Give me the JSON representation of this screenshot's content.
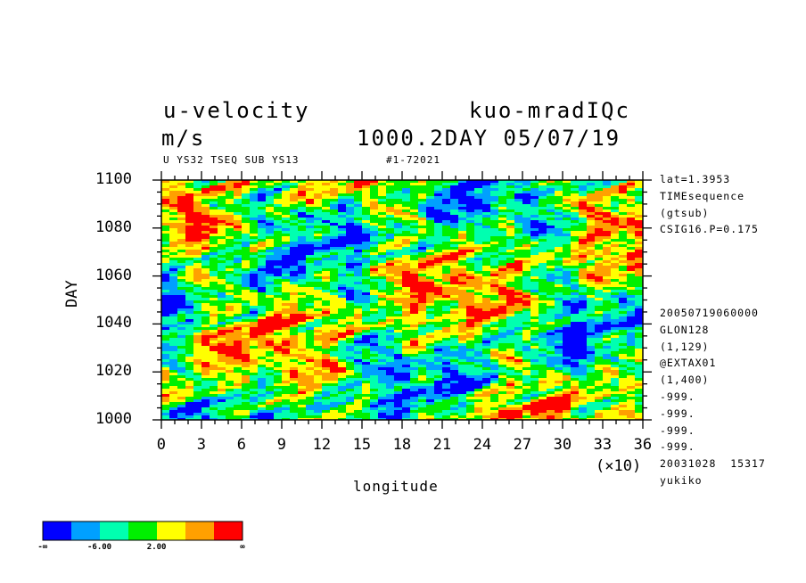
{
  "header": {
    "title_left": "u-velocity",
    "units": "m/s",
    "title_right": "kuo-mradIQc",
    "subtitle_right": "1000.2DAY 05/07/19",
    "info_line": "U YS32 TSEQ SUB YS13",
    "run_id": "#1-72021"
  },
  "side_info": {
    "top": [
      "lat=1.3953",
      "TIMEsequence",
      "(gtsub)",
      "CSIG16.P=0.175"
    ],
    "bottom": [
      "20050719060000",
      "GLON128",
      "(1,129)",
      "@EXTAX01",
      "(1,400)",
      "-999.",
      "-999.",
      "-999.",
      "-999.",
      "20031028  15317",
      "yukiko"
    ]
  },
  "chart_data": {
    "type": "heatmap",
    "xlabel": "longitude",
    "x_scale_label": "(×10)",
    "ylabel": "DAY",
    "xlim": [
      0,
      36
    ],
    "ylim": [
      1000,
      1100
    ],
    "x_ticks": [
      "0",
      "3",
      "6",
      "9",
      "12",
      "15",
      "18",
      "21",
      "24",
      "27",
      "30",
      "33",
      "36"
    ],
    "y_ticks": [
      "1000",
      "1020",
      "1040",
      "1060",
      "1080",
      "1100"
    ],
    "colorbar": {
      "colors": [
        "#0000ff",
        "#00a0ff",
        "#00ffb0",
        "#00f000",
        "#ffff00",
        "#ffa000",
        "#ff0000"
      ],
      "labels": [
        "-∞",
        "-6.00",
        "2.00",
        "∞"
      ]
    }
  }
}
